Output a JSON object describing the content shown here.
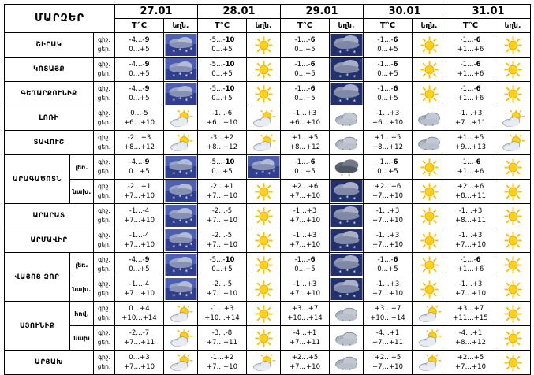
{
  "header": {
    "region_title": "ՄԱՐԶԵՐ",
    "temp_col": "T°C",
    "weather_col": "եղն.",
    "dates": [
      "27.01",
      "28.01",
      "29.01",
      "30.01",
      "31.01"
    ]
  },
  "labels": {
    "night": "գիշ.",
    "day": "ցեր.",
    "day_alt": "ցեր."
  },
  "rows": [
    {
      "region": "ՇԻՐԱԿ",
      "sub": "",
      "labels": [
        "գիշ.",
        "ցեր."
      ],
      "cells": [
        {
          "night": "-4…-",
          "night_b": "9",
          "day": "0…+5",
          "icon": "snow-icon"
        },
        {
          "night": "-5…-",
          "night_b": "10",
          "day": "0…+5",
          "icon": "sun-icon"
        },
        {
          "night": "-1…-",
          "night_b": "6",
          "day": "0…+5",
          "icon": "snow-cloud-icon"
        },
        {
          "night": "-1…-",
          "night_b": "6",
          "day": "0…+5",
          "icon": "sun-icon"
        },
        {
          "night": "-1…-",
          "night_b": "6",
          "day": "+1…+6",
          "icon": "sun-icon"
        }
      ]
    },
    {
      "region": "ԿՈՏԱՅՔ",
      "sub": "",
      "labels": [
        "գիշ.",
        "ցեր."
      ],
      "cells": [
        {
          "night": "-4…-",
          "night_b": "9",
          "day": "0…+5",
          "icon": "snow-icon"
        },
        {
          "night": "-5…-",
          "night_b": "10",
          "day": "0…+5",
          "icon": "sun-icon"
        },
        {
          "night": "-1…-",
          "night_b": "6",
          "day": "0…+5",
          "icon": "snow-cloud-icon"
        },
        {
          "night": "-1…-",
          "night_b": "6",
          "day": "0…+5",
          "icon": "sun-icon"
        },
        {
          "night": "-1…-",
          "night_b": "6",
          "day": "+1…+6",
          "icon": "sun-icon"
        }
      ]
    },
    {
      "region": "ԳԵՂԱՐՔՈՒՆԻՔ",
      "sub": "",
      "labels": [
        "գիշ.",
        "ցեր."
      ],
      "cells": [
        {
          "night": "-4…-",
          "night_b": "9",
          "day": "0…+5",
          "icon": "snow-icon"
        },
        {
          "night": "-5…-",
          "night_b": "10",
          "day": "0…+5",
          "icon": "sun-icon"
        },
        {
          "night": "-1…-",
          "night_b": "6",
          "day": "0…+5",
          "icon": "snow-cloud-icon"
        },
        {
          "night": "-1…-",
          "night_b": "6",
          "day": "0…+5",
          "icon": "sun-icon"
        },
        {
          "night": "-1…-",
          "night_b": "6",
          "day": "+1…+6",
          "icon": "sun-icon"
        }
      ]
    },
    {
      "region": "ԼՈՌԻ",
      "sub": "",
      "labels": [
        "գիշ.",
        "ցեր."
      ],
      "cells": [
        {
          "night": "0…-5",
          "night_b": "",
          "day": "+6…+10",
          "icon": "partly-cloudy-icon"
        },
        {
          "night": "-1…-6",
          "night_b": "",
          "day": "+6…+10",
          "icon": "partly-cloudy-icon"
        },
        {
          "night": "-1…+3",
          "night_b": "",
          "day": "+6…+10",
          "icon": "cloud-icon"
        },
        {
          "night": "-1…+3",
          "night_b": "",
          "day": "+6…+10",
          "icon": "cloud-icon"
        },
        {
          "night": "-1…+3",
          "night_b": "",
          "day": "+7…+11",
          "icon": "partly-cloudy-icon"
        }
      ]
    },
    {
      "region": "ՏԱՎՈՒՇ",
      "sub": "",
      "labels": [
        "գիշ.",
        "ցեր."
      ],
      "cells": [
        {
          "night": "-2…+3",
          "night_b": "",
          "day": "+8…+12",
          "icon": "partly-cloudy-icon"
        },
        {
          "night": "-3…+2",
          "night_b": "",
          "day": "+8…+12",
          "icon": "partly-cloudy-icon"
        },
        {
          "night": "+1…+5",
          "night_b": "",
          "day": "+8…+12",
          "icon": "cloud-icon"
        },
        {
          "night": "+1…+5",
          "night_b": "",
          "day": "+8…+12",
          "icon": "cloud-icon"
        },
        {
          "night": "+1…+5",
          "night_b": "",
          "day": "+9…+13",
          "icon": "partly-cloudy-icon"
        }
      ]
    },
    {
      "region": "ԱՐԱԳԱԾՈՏՆ",
      "sub": "լեռ.",
      "labels": [
        "գիշ.",
        "ցեր."
      ],
      "cells": [
        {
          "night": "-4…-",
          "night_b": "9",
          "day": "0…+5",
          "icon": "snow-icon"
        },
        {
          "night": "-5…-",
          "night_b": "10",
          "day": "0…+5",
          "icon": "snow-icon"
        },
        {
          "night": "-1…-",
          "night_b": "6",
          "day": "0…+5",
          "icon": "dark-cloud-icon"
        },
        {
          "night": "-1…-",
          "night_b": "6",
          "day": "0…+5",
          "icon": "sun-icon"
        },
        {
          "night": "-1…-",
          "night_b": "6",
          "day": "+1…+6",
          "icon": "sun-icon"
        }
      ]
    },
    {
      "region": "",
      "sub": "նախ.",
      "labels": [
        "գիշ.",
        "ցեր."
      ],
      "cells": [
        {
          "night": "-2…+1",
          "night_b": "",
          "day": "+7…+10",
          "icon": "snow-icon"
        },
        {
          "night": "-2…+1",
          "night_b": "",
          "day": "+7…+10",
          "icon": "sun-icon"
        },
        {
          "night": "+2…+6",
          "night_b": "",
          "day": "+7…+10",
          "icon": "snow-cloud-icon"
        },
        {
          "night": "+2…+6",
          "night_b": "",
          "day": "+7…+10",
          "icon": "sun-icon"
        },
        {
          "night": "+2…+6",
          "night_b": "",
          "day": "+8…+11",
          "icon": "sun-icon"
        }
      ]
    },
    {
      "region": "ԱՐԱՐԱՏ",
      "sub": "",
      "labels": [
        "գիշ.",
        "ցեր."
      ],
      "cells": [
        {
          "night": "-1…-4",
          "night_b": "",
          "day": "+7…+10",
          "icon": "snow-icon"
        },
        {
          "night": "-2…-5",
          "night_b": "",
          "day": "+7…+10",
          "icon": "sun-icon"
        },
        {
          "night": "-1…+3",
          "night_b": "",
          "day": "+7…+10",
          "icon": "snow-cloud-icon"
        },
        {
          "night": "-1…+3",
          "night_b": "",
          "day": "+7…+10",
          "icon": "sun-icon"
        },
        {
          "night": "-1…+3",
          "night_b": "",
          "day": "+8…+11",
          "icon": "sun-icon"
        }
      ]
    },
    {
      "region": "ԱՐՄԱՎԻՐ",
      "sub": "",
      "labels": [
        "գիշ.",
        "ցեր."
      ],
      "cells": [
        {
          "night": "-1…-4",
          "night_b": "",
          "day": "+7…+10",
          "icon": "snow-icon"
        },
        {
          "night": "-2…-5",
          "night_b": "",
          "day": "+7…+10",
          "icon": "sun-icon"
        },
        {
          "night": "-1…+3",
          "night_b": "",
          "day": "+7…+10",
          "icon": "snow-cloud-icon"
        },
        {
          "night": "-1…+3",
          "night_b": "",
          "day": "+7…+10",
          "icon": "sun-icon"
        },
        {
          "night": "-1…+3",
          "night_b": "",
          "day": "+7…+10",
          "icon": "sun-icon"
        }
      ]
    },
    {
      "region": "ՎԱՅՈՑ ՁՈՐ",
      "sub": "լեռ.",
      "labels": [
        "գիշ.",
        "ցեր."
      ],
      "cells": [
        {
          "night": "-4…-",
          "night_b": "9",
          "day": "0…+5",
          "icon": "snow-icon"
        },
        {
          "night": "-5…-",
          "night_b": "10",
          "day": "0…+5",
          "icon": "sun-icon"
        },
        {
          "night": "-1…-",
          "night_b": "6",
          "day": "0…+5",
          "icon": "snow-cloud-icon"
        },
        {
          "night": "-1…-",
          "night_b": "6",
          "day": "0…+5",
          "icon": "sun-icon"
        },
        {
          "night": "-1…-",
          "night_b": "6",
          "day": "+1…+6",
          "icon": "sun-icon"
        }
      ]
    },
    {
      "region": "",
      "sub": "նախ.",
      "labels": [
        "գիշ.",
        "ցեր."
      ],
      "cells": [
        {
          "night": "-1…-4",
          "night_b": "",
          "day": "+7…+10",
          "icon": "snow-icon"
        },
        {
          "night": "-2…-5",
          "night_b": "",
          "day": "+7…+10",
          "icon": "sun-icon"
        },
        {
          "night": "-1…+3",
          "night_b": "",
          "day": "+7…+10",
          "icon": "snow-cloud-icon"
        },
        {
          "night": "-1…+3",
          "night_b": "",
          "day": "+7…+10",
          "icon": "sun-icon"
        },
        {
          "night": "-1…+3",
          "night_b": "",
          "day": "+7…+10",
          "icon": "sun-icon"
        }
      ]
    },
    {
      "region": "ՍՅՈՒՆԻՔ",
      "sub": "հով.",
      "labels": [
        "գիշ.",
        "ցեր."
      ],
      "cells": [
        {
          "night": "0…+4",
          "night_b": "",
          "day": "+10…+14",
          "icon": "partly-cloudy-icon"
        },
        {
          "night": "-1…+3",
          "night_b": "",
          "day": "+10…+14",
          "icon": "sun-icon"
        },
        {
          "night": "+3…+7",
          "night_b": "",
          "day": "+10…+14",
          "icon": "cloud-icon"
        },
        {
          "night": "+3…+7",
          "night_b": "",
          "day": "+10…+14",
          "icon": "partly-cloudy-icon"
        },
        {
          "night": "+3…+7",
          "night_b": "",
          "day": "+11…+15",
          "icon": "sun-icon"
        }
      ]
    },
    {
      "region": "",
      "sub": "նախ",
      "labels": [
        "գիշ.",
        "ցեր."
      ],
      "cells": [
        {
          "night": "-2…-7",
          "night_b": "",
          "day": "+7…+11",
          "icon": "partly-cloudy-icon"
        },
        {
          "night": "-3…-8",
          "night_b": "",
          "day": "+7…+11",
          "icon": "sun-icon"
        },
        {
          "night": "-4…+1",
          "night_b": "",
          "day": "+7…+11",
          "icon": "cloud-icon"
        },
        {
          "night": "-4…+1",
          "night_b": "",
          "day": "+7…+11",
          "icon": "partly-cloudy-icon"
        },
        {
          "night": "-4…+1",
          "night_b": "",
          "day": "+8…+12",
          "icon": "sun-icon"
        }
      ]
    },
    {
      "region": "ԱՐՑԱԽ",
      "sub": "",
      "labels": [
        "գիշ.",
        "ցեր."
      ],
      "cells": [
        {
          "night": "0…+3",
          "night_b": "",
          "day": "+7…+10",
          "icon": "partly-cloudy-icon"
        },
        {
          "night": "-1…+2",
          "night_b": "",
          "day": "+7…+10",
          "icon": "partly-cloudy-icon"
        },
        {
          "night": "+2…+5",
          "night_b": "",
          "day": "+7…+10",
          "icon": "cloud-icon"
        },
        {
          "night": "+2…+5",
          "night_b": "",
          "day": "+7…+10",
          "icon": "partly-cloudy-icon"
        },
        {
          "night": "+2…+5",
          "night_b": "",
          "day": "+7…+10",
          "icon": "sun-icon"
        }
      ]
    }
  ],
  "colors": {
    "border": "#000000",
    "sun": "#f5b800",
    "snow_bg": "#3c4a9a",
    "cloud": "#c7ccd6"
  }
}
